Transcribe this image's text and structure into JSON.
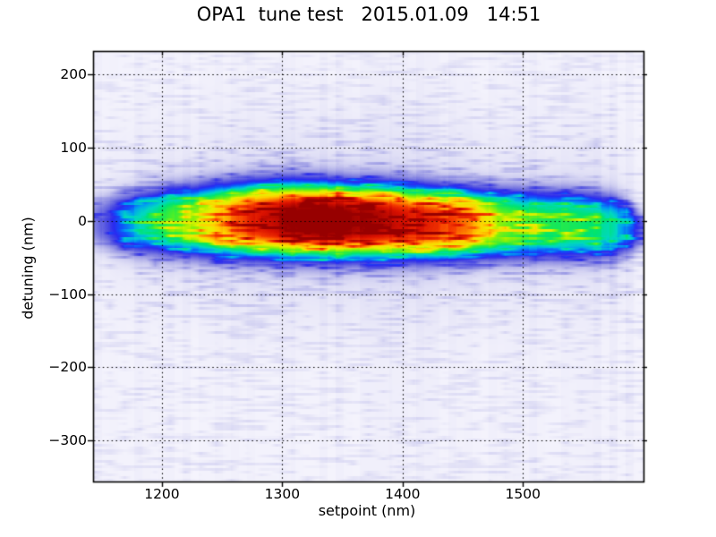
{
  "figure": {
    "background_color": "#ffffff",
    "frame_color": "#000000",
    "tick_color": "#000000",
    "grid_color": "#000000"
  },
  "chart_data": {
    "type": "heatmap",
    "title": "OPA1  tune test   2015.01.09   14:51",
    "xlabel": "setpoint (nm)",
    "ylabel": "detuning (nm)",
    "xlim": [
      1143.5,
      1599.5
    ],
    "ylim": [
      -355,
      231
    ],
    "xticks": [
      1200,
      1300,
      1400,
      1500
    ],
    "yticks": [
      200,
      100,
      0,
      -100,
      -200,
      -300
    ],
    "grid": {
      "style": "dotted",
      "on": true
    },
    "legend": "none",
    "colormap_stops": [
      [
        0.0,
        "#f8f7fe"
      ],
      [
        0.05,
        "#eeedfa"
      ],
      [
        0.1,
        "#e2e1f6"
      ],
      [
        0.16,
        "#cfcef1"
      ],
      [
        0.22,
        "#b4b3ea"
      ],
      [
        0.28,
        "#9392e4"
      ],
      [
        0.34,
        "#6f6fe0"
      ],
      [
        0.4,
        "#4747e2"
      ],
      [
        0.45,
        "#2a2af0"
      ],
      [
        0.5,
        "#0f53fa"
      ],
      [
        0.55,
        "#00a0f0"
      ],
      [
        0.6,
        "#00d8c0"
      ],
      [
        0.65,
        "#00e470"
      ],
      [
        0.7,
        "#40ee30"
      ],
      [
        0.75,
        "#a0f000"
      ],
      [
        0.79,
        "#e8f000"
      ],
      [
        0.83,
        "#ffd000"
      ],
      [
        0.87,
        "#ff8c00"
      ],
      [
        0.91,
        "#f63a00"
      ],
      [
        0.95,
        "#d81000"
      ],
      [
        1.0,
        "#970000"
      ]
    ],
    "band_profile": {
      "model": "columns [setpoint_nm, peak_intensity_0to1, center_detuning_nm, sigma_nm]; vertical profile I = peak*exp(-(|d-c|/sigma)^3) plus outer halo",
      "points": [
        [
          1143.5,
          0.27,
          -1,
          36
        ],
        [
          1153,
          0.36,
          -2,
          39
        ],
        [
          1164,
          0.46,
          -2,
          42
        ],
        [
          1176,
          0.53,
          -2,
          45
        ],
        [
          1190,
          0.6,
          -1,
          47
        ],
        [
          1205,
          0.66,
          0,
          49
        ],
        [
          1222,
          0.71,
          0,
          51
        ],
        [
          1240,
          0.77,
          1,
          53
        ],
        [
          1258,
          0.85,
          1,
          54
        ],
        [
          1276,
          0.91,
          2,
          55
        ],
        [
          1296,
          0.95,
          2,
          56
        ],
        [
          1316,
          0.985,
          2,
          56
        ],
        [
          1336,
          1.0,
          1,
          56
        ],
        [
          1356,
          0.975,
          0,
          55
        ],
        [
          1378,
          0.945,
          0,
          55
        ],
        [
          1398,
          0.915,
          -1,
          54
        ],
        [
          1418,
          0.895,
          -2,
          53
        ],
        [
          1438,
          0.875,
          -3,
          52
        ],
        [
          1452,
          0.85,
          -3,
          51
        ],
        [
          1466,
          0.8,
          -3,
          50
        ],
        [
          1480,
          0.71,
          -4,
          50
        ],
        [
          1496,
          0.66,
          -4,
          50
        ],
        [
          1512,
          0.645,
          -4,
          50
        ],
        [
          1528,
          0.64,
          -5,
          50
        ],
        [
          1544,
          0.63,
          -5,
          49
        ],
        [
          1558,
          0.61,
          -6,
          48
        ],
        [
          1572,
          0.585,
          -7,
          46
        ],
        [
          1582,
          0.525,
          -8,
          42
        ],
        [
          1590,
          0.45,
          -10,
          35
        ],
        [
          1595,
          0.38,
          -11,
          30
        ],
        [
          1599.5,
          0.31,
          -12,
          26
        ]
      ]
    },
    "background_noise": {
      "base": 0.034,
      "streak_amplitude": 0.14,
      "column_tint": 0.025,
      "wide_tint": 0.018,
      "seed": 7
    }
  }
}
